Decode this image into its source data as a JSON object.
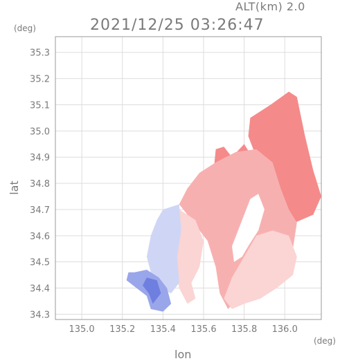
{
  "header": {
    "altitude_label": "ALT(km) 2.0",
    "timestamp": "2021/12/25 03:26:47"
  },
  "axes": {
    "x_unit": "(deg)",
    "y_unit": "(deg)",
    "x_label": "lon",
    "y_label": "lat",
    "x_ticks": [
      "135.0",
      "135.2",
      "135.4",
      "135.6",
      "135.8",
      "136.0"
    ],
    "y_ticks": [
      "34.3",
      "34.4",
      "34.5",
      "34.6",
      "34.7",
      "34.8",
      "34.9",
      "35.0",
      "35.1",
      "35.2",
      "35.3"
    ]
  },
  "map": {
    "lon_range": [
      134.87,
      136.18
    ],
    "lat_range": [
      34.28,
      35.36
    ],
    "colors": {
      "strong_red": "#f58a8a",
      "medium_red": "#f7b0b0",
      "light_red": "#fbd4d4",
      "light_blue": "#cfd6f5",
      "medium_blue": "#9aa6ea",
      "strong_blue": "#6f7fe0",
      "grid": "#dddddd",
      "frame": "#999999",
      "text": "#7a7a7a"
    },
    "regions": [
      {
        "name": "northeast-strong-echo",
        "color": "strong_red",
        "polygon": [
          [
            135.83,
            35.05
          ],
          [
            135.93,
            35.1
          ],
          [
            136.02,
            35.15
          ],
          [
            136.06,
            35.13
          ],
          [
            136.1,
            34.98
          ],
          [
            136.14,
            34.85
          ],
          [
            136.18,
            34.75
          ],
          [
            136.14,
            34.68
          ],
          [
            136.05,
            34.65
          ],
          [
            135.96,
            34.68
          ],
          [
            135.9,
            34.78
          ],
          [
            135.86,
            34.9
          ],
          [
            135.82,
            34.98
          ]
        ]
      },
      {
        "name": "northwest-strong-echo",
        "color": "strong_red",
        "polygon": [
          [
            135.66,
            34.93
          ],
          [
            135.7,
            34.94
          ],
          [
            135.74,
            34.9
          ],
          [
            135.8,
            34.95
          ],
          [
            135.84,
            34.9
          ],
          [
            135.82,
            34.8
          ],
          [
            135.76,
            34.78
          ],
          [
            135.7,
            34.8
          ],
          [
            135.65,
            34.85
          ]
        ]
      },
      {
        "name": "central-medium-echo",
        "color": "medium_red",
        "polygon": [
          [
            135.58,
            34.84
          ],
          [
            135.66,
            34.88
          ],
          [
            135.76,
            34.92
          ],
          [
            135.86,
            34.93
          ],
          [
            135.94,
            34.88
          ],
          [
            135.98,
            34.78
          ],
          [
            136.02,
            34.7
          ],
          [
            136.06,
            34.65
          ],
          [
            136.04,
            34.55
          ],
          [
            135.98,
            34.5
          ],
          [
            135.9,
            34.45
          ],
          [
            135.82,
            34.4
          ],
          [
            135.76,
            34.35
          ],
          [
            135.72,
            34.32
          ],
          [
            135.68,
            34.38
          ],
          [
            135.66,
            34.48
          ],
          [
            135.62,
            34.58
          ],
          [
            135.56,
            34.64
          ],
          [
            135.5,
            34.7
          ],
          [
            135.48,
            34.72
          ],
          [
            135.52,
            34.78
          ]
        ]
      },
      {
        "name": "southeast-light-echo",
        "color": "light_red",
        "polygon": [
          [
            135.86,
            34.6
          ],
          [
            135.94,
            34.62
          ],
          [
            136.02,
            34.6
          ],
          [
            136.06,
            34.52
          ],
          [
            136.04,
            34.45
          ],
          [
            135.96,
            34.4
          ],
          [
            135.88,
            34.36
          ],
          [
            135.8,
            34.34
          ],
          [
            135.74,
            34.32
          ],
          [
            135.7,
            34.36
          ],
          [
            135.74,
            34.44
          ],
          [
            135.8,
            34.52
          ]
        ]
      },
      {
        "name": "southwest-light-echo",
        "color": "light_red",
        "polygon": [
          [
            135.48,
            34.7
          ],
          [
            135.56,
            34.66
          ],
          [
            135.6,
            34.58
          ],
          [
            135.58,
            34.48
          ],
          [
            135.54,
            34.42
          ],
          [
            135.56,
            34.36
          ],
          [
            135.52,
            34.34
          ],
          [
            135.48,
            34.4
          ],
          [
            135.46,
            34.48
          ],
          [
            135.44,
            34.56
          ],
          [
            135.46,
            34.64
          ]
        ]
      },
      {
        "name": "west-light-blue-echo",
        "color": "light_blue",
        "polygon": [
          [
            135.4,
            34.7
          ],
          [
            135.48,
            34.72
          ],
          [
            135.49,
            34.62
          ],
          [
            135.47,
            34.52
          ],
          [
            135.48,
            34.42
          ],
          [
            135.44,
            34.38
          ],
          [
            135.38,
            34.4
          ],
          [
            135.34,
            34.46
          ],
          [
            135.32,
            34.52
          ],
          [
            135.34,
            34.6
          ],
          [
            135.37,
            34.66
          ]
        ]
      },
      {
        "name": "southwest-blue-echo",
        "color": "medium_blue",
        "polygon": [
          [
            135.26,
            34.46
          ],
          [
            135.32,
            34.47
          ],
          [
            135.38,
            34.44
          ],
          [
            135.42,
            34.4
          ],
          [
            135.44,
            34.34
          ],
          [
            135.4,
            34.31
          ],
          [
            135.34,
            34.32
          ],
          [
            135.32,
            34.37
          ],
          [
            135.27,
            34.4
          ],
          [
            135.22,
            34.43
          ],
          [
            135.23,
            34.46
          ]
        ]
      },
      {
        "name": "southwest-strong-blue-echo",
        "color": "strong_blue",
        "polygon": [
          [
            135.32,
            34.44
          ],
          [
            135.37,
            34.43
          ],
          [
            135.39,
            34.38
          ],
          [
            135.35,
            34.34
          ],
          [
            135.33,
            34.38
          ],
          [
            135.3,
            34.41
          ]
        ]
      },
      {
        "name": "lake-gap",
        "color": "white",
        "polygon": [
          [
            135.83,
            34.74
          ],
          [
            135.87,
            34.76
          ],
          [
            135.9,
            34.7
          ],
          [
            135.87,
            34.62
          ],
          [
            135.82,
            34.56
          ],
          [
            135.79,
            34.52
          ],
          [
            135.75,
            34.5
          ],
          [
            135.74,
            34.56
          ],
          [
            135.77,
            34.62
          ],
          [
            135.8,
            34.68
          ]
        ]
      }
    ]
  }
}
